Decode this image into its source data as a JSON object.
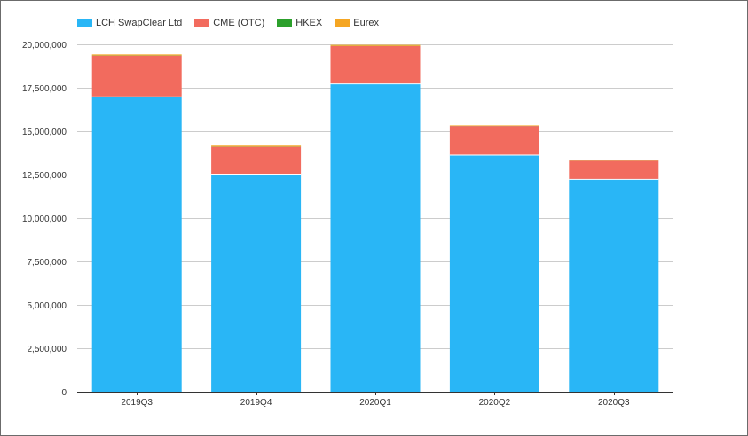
{
  "chart_data": {
    "type": "bar",
    "stacked": true,
    "categories": [
      "2019Q3",
      "2019Q4",
      "2020Q1",
      "2020Q2",
      "2020Q3"
    ],
    "series": [
      {
        "name": "LCH SwapClear Ltd",
        "color": "#29b6f6",
        "values": [
          17000000,
          12550000,
          17750000,
          13650000,
          12250000
        ]
      },
      {
        "name": "CME (OTC)",
        "color": "#f26b5e",
        "values": [
          2350000,
          1550000,
          2150000,
          1650000,
          1050000
        ]
      },
      {
        "name": "HKEX",
        "color": "#2ca02c",
        "values": [
          10000,
          10000,
          10000,
          5000,
          5000
        ]
      },
      {
        "name": "Eurex",
        "color": "#f5a623",
        "values": [
          60000,
          60000,
          60000,
          30000,
          60000
        ]
      }
    ],
    "y_ticks": [
      "0",
      "2,500,000",
      "5,000,000",
      "7,500,000",
      "10,000,000",
      "12,500,000",
      "15,000,000",
      "17,500,000",
      "20,000,000"
    ],
    "ylim": [
      0,
      20000000
    ],
    "grid": true,
    "legend_position": "top-left"
  }
}
